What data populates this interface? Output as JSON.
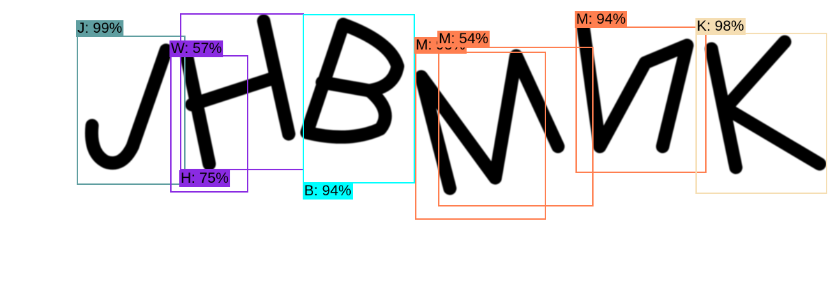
{
  "captcha": {
    "glyphs": [
      "J",
      "H",
      "B",
      "M",
      "M",
      "K"
    ]
  },
  "detections": [
    {
      "id": "j",
      "label": "J: 99%",
      "color": "#5f9ea0",
      "tag_bg": "#5f9ea0"
    },
    {
      "id": "w",
      "label": "W: 57%",
      "color": "#8a2be2",
      "tag_bg": "#8a2be2"
    },
    {
      "id": "h",
      "label": "H: 75%",
      "color": "#8a2be2",
      "tag_bg": "#8a2be2"
    },
    {
      "id": "b",
      "label": "B: 94%",
      "color": "#00ffff",
      "tag_bg": "#00ffff"
    },
    {
      "id": "m1",
      "label": "M: 93%",
      "color": "#ff7f50",
      "tag_bg": "#ff7f50"
    },
    {
      "id": "m2",
      "label": "M: 54%",
      "color": "#ff7f50",
      "tag_bg": "#ff7f50"
    },
    {
      "id": "m3",
      "label": "M: 94%",
      "color": "#ff7f50",
      "tag_bg": "#ff7f50"
    },
    {
      "id": "k",
      "label": "K: 98%",
      "color": "#f5deb3",
      "tag_bg": "#f5deb3"
    }
  ]
}
